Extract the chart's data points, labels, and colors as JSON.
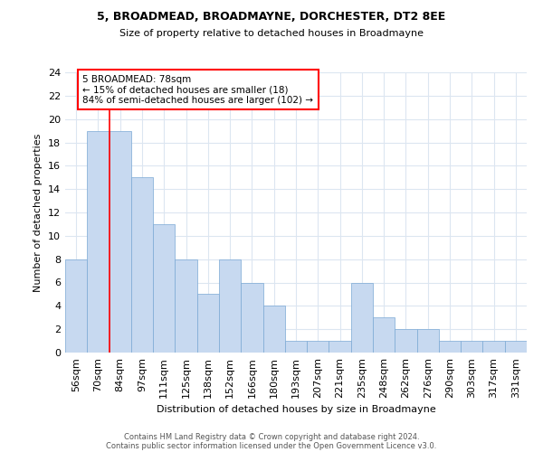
{
  "title1": "5, BROADMEAD, BROADMAYNE, DORCHESTER, DT2 8EE",
  "title2": "Size of property relative to detached houses in Broadmayne",
  "xlabel": "Distribution of detached houses by size in Broadmayne",
  "ylabel": "Number of detached properties",
  "categories": [
    "56sqm",
    "70sqm",
    "84sqm",
    "97sqm",
    "111sqm",
    "125sqm",
    "138sqm",
    "152sqm",
    "166sqm",
    "180sqm",
    "193sqm",
    "207sqm",
    "221sqm",
    "235sqm",
    "248sqm",
    "262sqm",
    "276sqm",
    "290sqm",
    "303sqm",
    "317sqm",
    "331sqm"
  ],
  "values": [
    8,
    19,
    19,
    15,
    11,
    8,
    5,
    8,
    6,
    4,
    1,
    1,
    1,
    6,
    3,
    2,
    2,
    1,
    1,
    1,
    1
  ],
  "bar_color": "#c7d9f0",
  "bar_edge_color": "#7aa8d4",
  "red_line_index": 1.5,
  "ylim": [
    0,
    24
  ],
  "yticks": [
    0,
    2,
    4,
    6,
    8,
    10,
    12,
    14,
    16,
    18,
    20,
    22,
    24
  ],
  "annotation_box_text": "5 BROADMEAD: 78sqm\n← 15% of detached houses are smaller (18)\n84% of semi-detached houses are larger (102) →",
  "footer1": "Contains HM Land Registry data © Crown copyright and database right 2024.",
  "footer2": "Contains public sector information licensed under the Open Government Licence v3.0.",
  "background_color": "#ffffff",
  "grid_color": "#dce6f1"
}
